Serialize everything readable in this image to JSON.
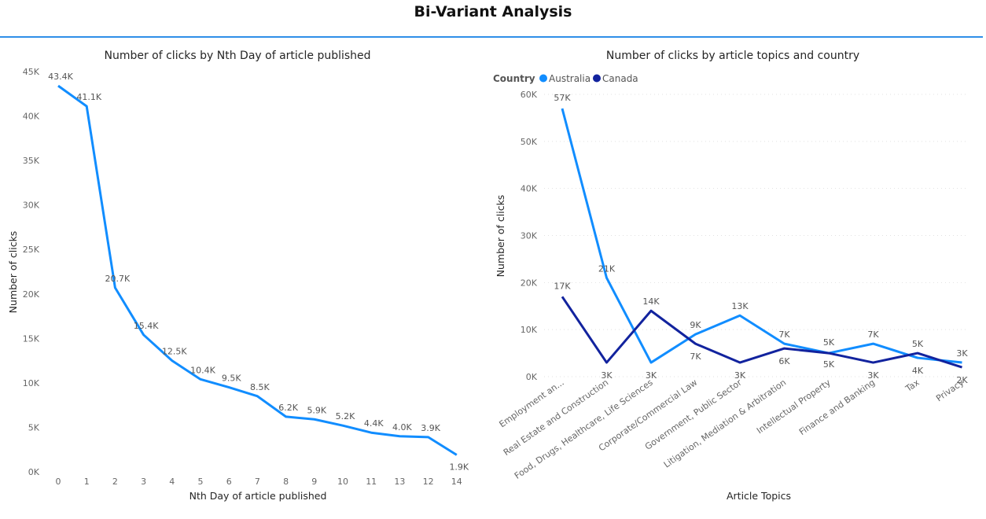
{
  "page": {
    "title": "Bi-Variant Analysis"
  },
  "chart_data": [
    {
      "type": "line",
      "title": "Number of clicks by Nth Day of article published",
      "xlabel": "Nth Day of article published",
      "ylabel": "Number of clicks",
      "x": [
        "0",
        "1",
        "2",
        "3",
        "4",
        "5",
        "6",
        "7",
        "8",
        "9",
        "10",
        "11",
        "13",
        "12",
        "14"
      ],
      "values": [
        43400,
        41100,
        20700,
        15400,
        12500,
        10400,
        9500,
        8500,
        6200,
        5900,
        5200,
        4400,
        4000,
        3900,
        1900
      ],
      "labels": [
        "43.4K",
        "41.1K",
        "20.7K",
        "15.4K",
        "12.5K",
        "10.4K",
        "9.5K",
        "8.5K",
        "6.2K",
        "5.9K",
        "5.2K",
        "4.4K",
        "4.0K",
        "3.9K",
        "1.9K"
      ],
      "ylim": [
        0,
        45000
      ],
      "yticks": [
        "0K",
        "5K",
        "10K",
        "15K",
        "20K",
        "25K",
        "30K",
        "35K",
        "40K",
        "45K"
      ],
      "grid": false,
      "color": "#118dff"
    },
    {
      "type": "line",
      "title": "Number of clicks by article topics and country",
      "xlabel": "Article Topics",
      "ylabel": "Number of clicks",
      "legend_title": "Country",
      "legend_position": "top-left",
      "categories": [
        "Employment an...",
        "Real Estate and Construction",
        "Food, Drugs, Healthcare, Life Sciences",
        "Corporate/Commercial Law",
        "Government, Public Sector",
        "Litigation, Mediation & Arbitration",
        "Intellectual Property",
        "Finance and Banking",
        "Tax",
        "Privacy"
      ],
      "series": [
        {
          "name": "Australia",
          "color": "#118dff",
          "values": [
            57000,
            21000,
            3000,
            9000,
            13000,
            7000,
            5000,
            7000,
            4000,
            3000
          ],
          "labels": [
            "57K",
            "21K",
            "3K",
            "9K",
            "13K",
            "7K",
            "5K",
            "7K",
            "4K",
            "3K"
          ]
        },
        {
          "name": "Canada",
          "color": "#12239e",
          "values": [
            17000,
            3000,
            14000,
            7000,
            3000,
            6000,
            5000,
            3000,
            5000,
            2000
          ],
          "labels": [
            "17K",
            "3K",
            "14K",
            "7K",
            "3K",
            "6K",
            "5K",
            "3K",
            "5K",
            "2K"
          ]
        }
      ],
      "ylim": [
        0,
        60000
      ],
      "yticks": [
        "0K",
        "10K",
        "20K",
        "30K",
        "40K",
        "50K",
        "60K"
      ],
      "grid": true
    }
  ]
}
